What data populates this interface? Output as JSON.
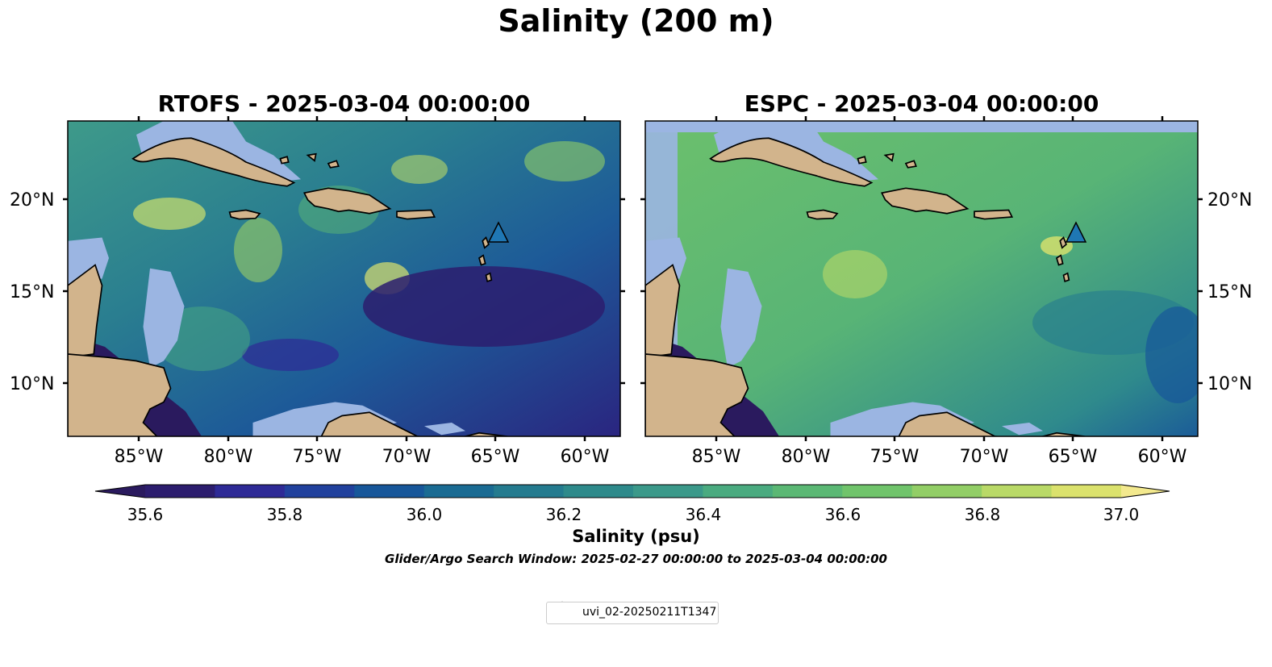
{
  "figure": {
    "title": "Salinity (200 m)",
    "search_window": "Glider/Argo Search Window: 2025-02-27 00:00:00 to 2025-03-04 00:00:00"
  },
  "panels": [
    {
      "title": "RTOFS - 2025-03-04 00:00:00",
      "x_ticks": [
        "85°W",
        "80°W",
        "75°W",
        "70°W",
        "65°W",
        "60°W"
      ],
      "y_ticks": [
        "20°N",
        "15°N",
        "10°N"
      ]
    },
    {
      "title": "ESPC - 2025-03-04 00:00:00",
      "x_ticks": [
        "85°W",
        "80°W",
        "75°W",
        "70°W",
        "65°W",
        "60°W"
      ],
      "y_ticks": [
        "20°N",
        "15°N",
        "10°N"
      ]
    }
  ],
  "colorbar": {
    "label": "Salinity (psu)",
    "ticks": [
      "35.6",
      "35.8",
      "36.0",
      "36.2",
      "36.4",
      "36.6",
      "36.8",
      "37.0"
    ],
    "colors": [
      "#2c1d6e",
      "#2e2a96",
      "#21419d",
      "#17579a",
      "#1a6b93",
      "#247b8f",
      "#2e8a8b",
      "#3b998a",
      "#4aab80",
      "#5bb874",
      "#70c46b",
      "#92ce66",
      "#b9d967",
      "#dbe26d"
    ],
    "under_color": "#2a1a5e",
    "over_color": "#f3e98e"
  },
  "legend": {
    "entry": "uvi_02-20250211T1347",
    "marker_color": "#1f77b4"
  },
  "map_colors": {
    "land": "#d2b48c",
    "shelf": "#9bb5e2",
    "deep_blue": "#2a1a5e"
  }
}
